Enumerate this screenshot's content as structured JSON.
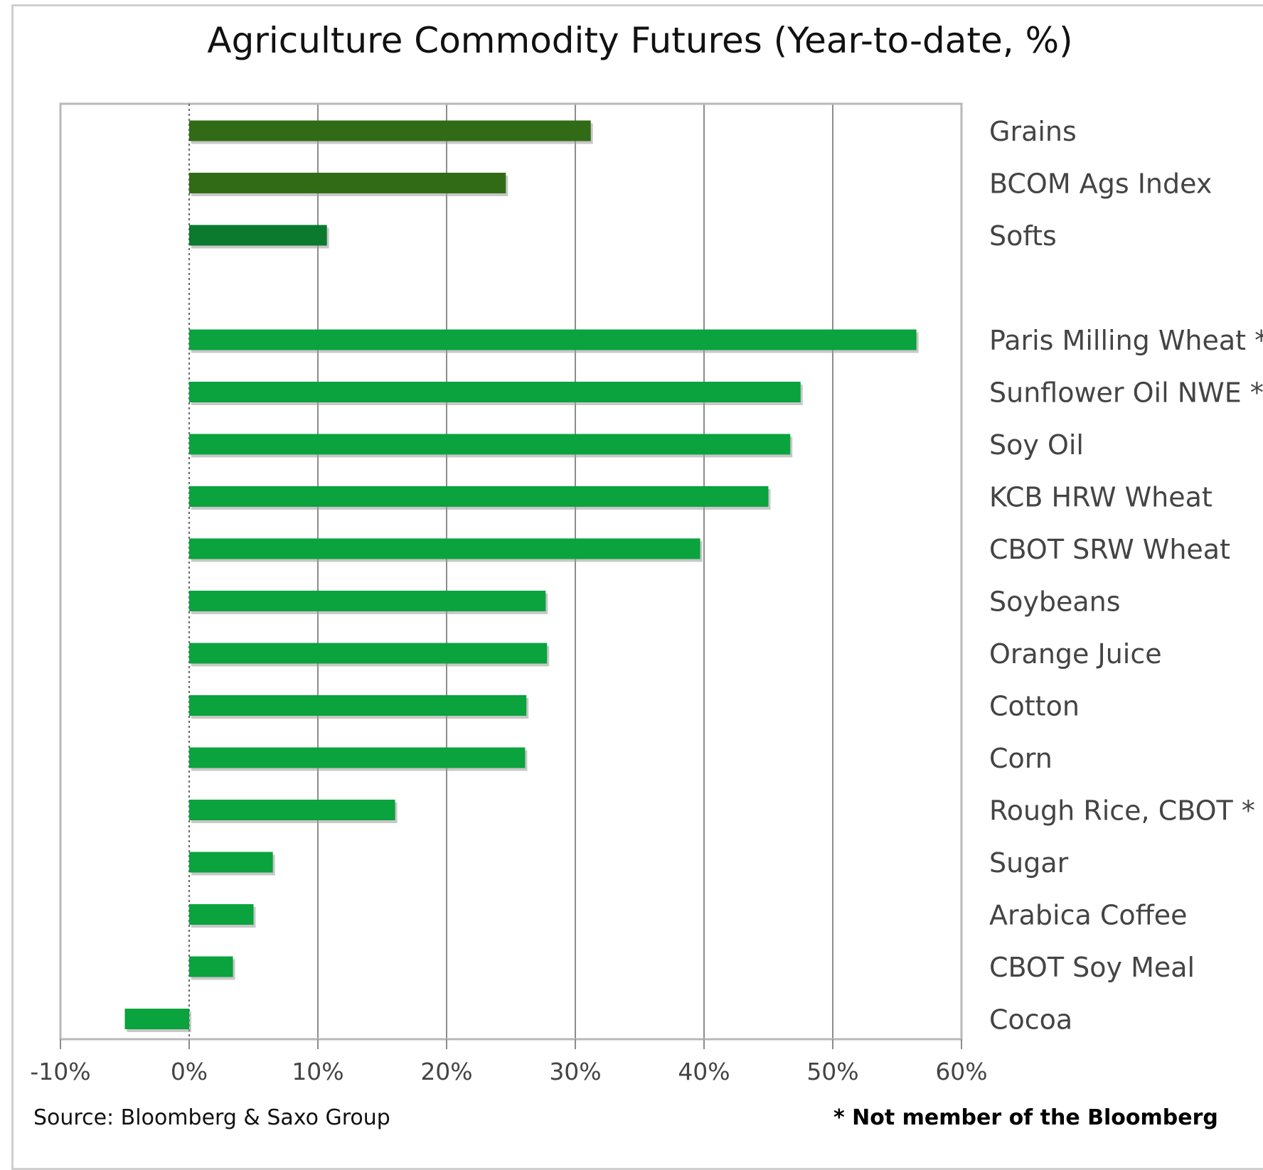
{
  "chart_data": {
    "type": "bar",
    "orientation": "horizontal",
    "title": "Agriculture Commodity Futures (Year-to-date, %)",
    "xlabel": "",
    "ylabel": "",
    "xlim": [
      -10,
      60
    ],
    "x_ticks": [
      -10,
      0,
      10,
      20,
      30,
      40,
      50,
      60
    ],
    "x_tick_labels": [
      "-10%",
      "0%",
      "10%",
      "20%",
      "30%",
      "40%",
      "50%",
      "60%"
    ],
    "grid": true,
    "category_labels_position": "right",
    "categories": [
      "Grains",
      "BCOM Ags Index",
      "Softs",
      "",
      "Paris Milling Wheat *",
      "Sunflower Oil NWE *",
      "Soy Oil",
      "KCB HRW Wheat",
      "CBOT SRW Wheat",
      "Soybeans",
      "Orange Juice",
      "Cotton",
      "Corn",
      "Rough Rice, CBOT *",
      "Sugar",
      "Arabica Coffee",
      "CBOT Soy Meal",
      "Cocoa"
    ],
    "values": [
      31.2,
      24.6,
      10.7,
      null,
      56.5,
      47.5,
      46.7,
      45.0,
      39.7,
      27.7,
      27.8,
      26.2,
      26.1,
      16.0,
      6.5,
      5.0,
      3.4,
      -5.0
    ],
    "bar_colors": [
      "#316b16",
      "#316b16",
      "#0b7a2f",
      "",
      "#0aa33e",
      "#0aa33e",
      "#0aa33e",
      "#0aa33e",
      "#0aa33e",
      "#0aa33e",
      "#0aa33e",
      "#0aa33e",
      "#0aa33e",
      "#0aa33e",
      "#0aa33e",
      "#0aa33e",
      "#0aa33e",
      "#0aa33e"
    ],
    "source": "Source: Bloomberg & Saxo Group",
    "note": "* Not member of the Bloomberg"
  }
}
